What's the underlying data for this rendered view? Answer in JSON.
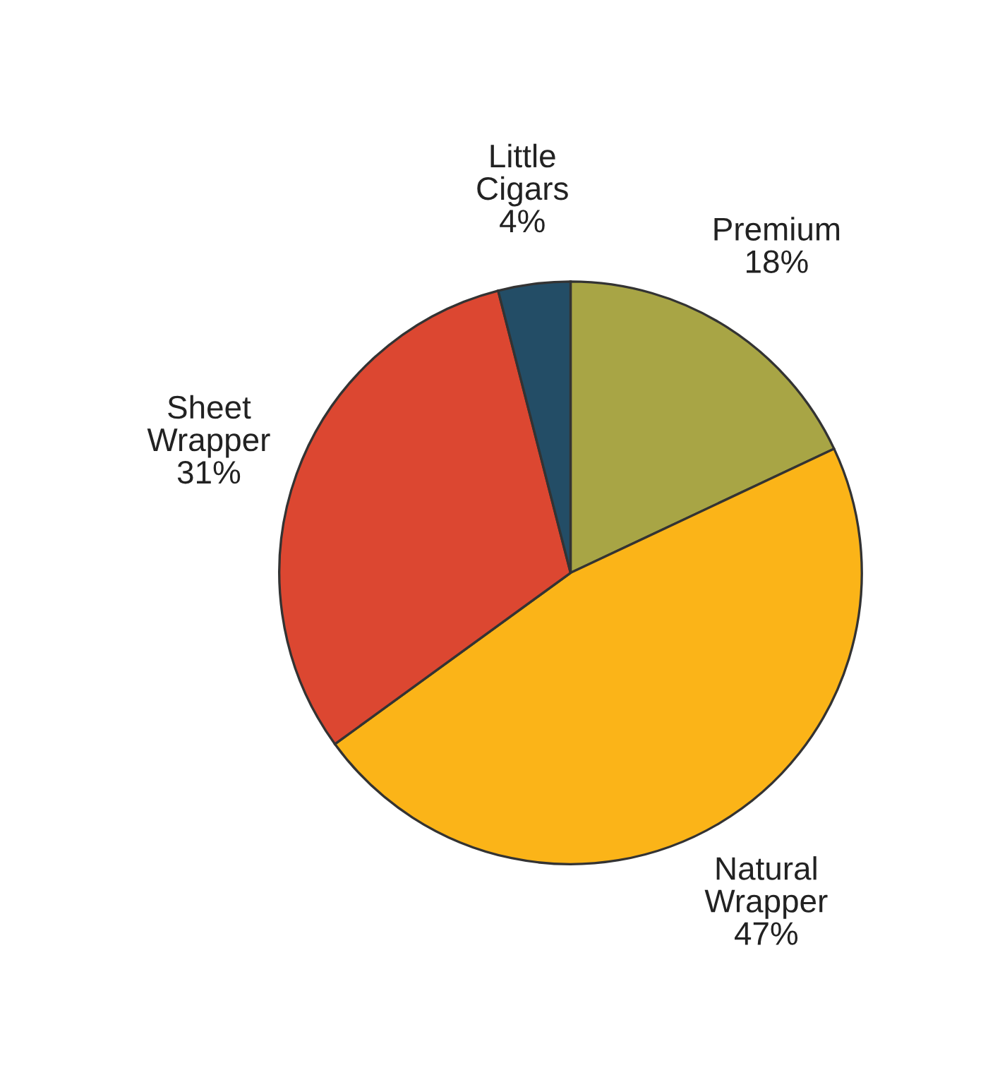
{
  "chart_data": {
    "type": "pie",
    "categories": [
      "Premium",
      "Natural\nWrapper",
      "Sheet\nWrapper",
      "Little\nCigars"
    ],
    "values": [
      18,
      47,
      31,
      4
    ],
    "value_labels": [
      "18%",
      "47%",
      "31%",
      "4%"
    ],
    "colors": [
      "#a8a545",
      "#fbb418",
      "#dc4731",
      "#234d66"
    ]
  }
}
